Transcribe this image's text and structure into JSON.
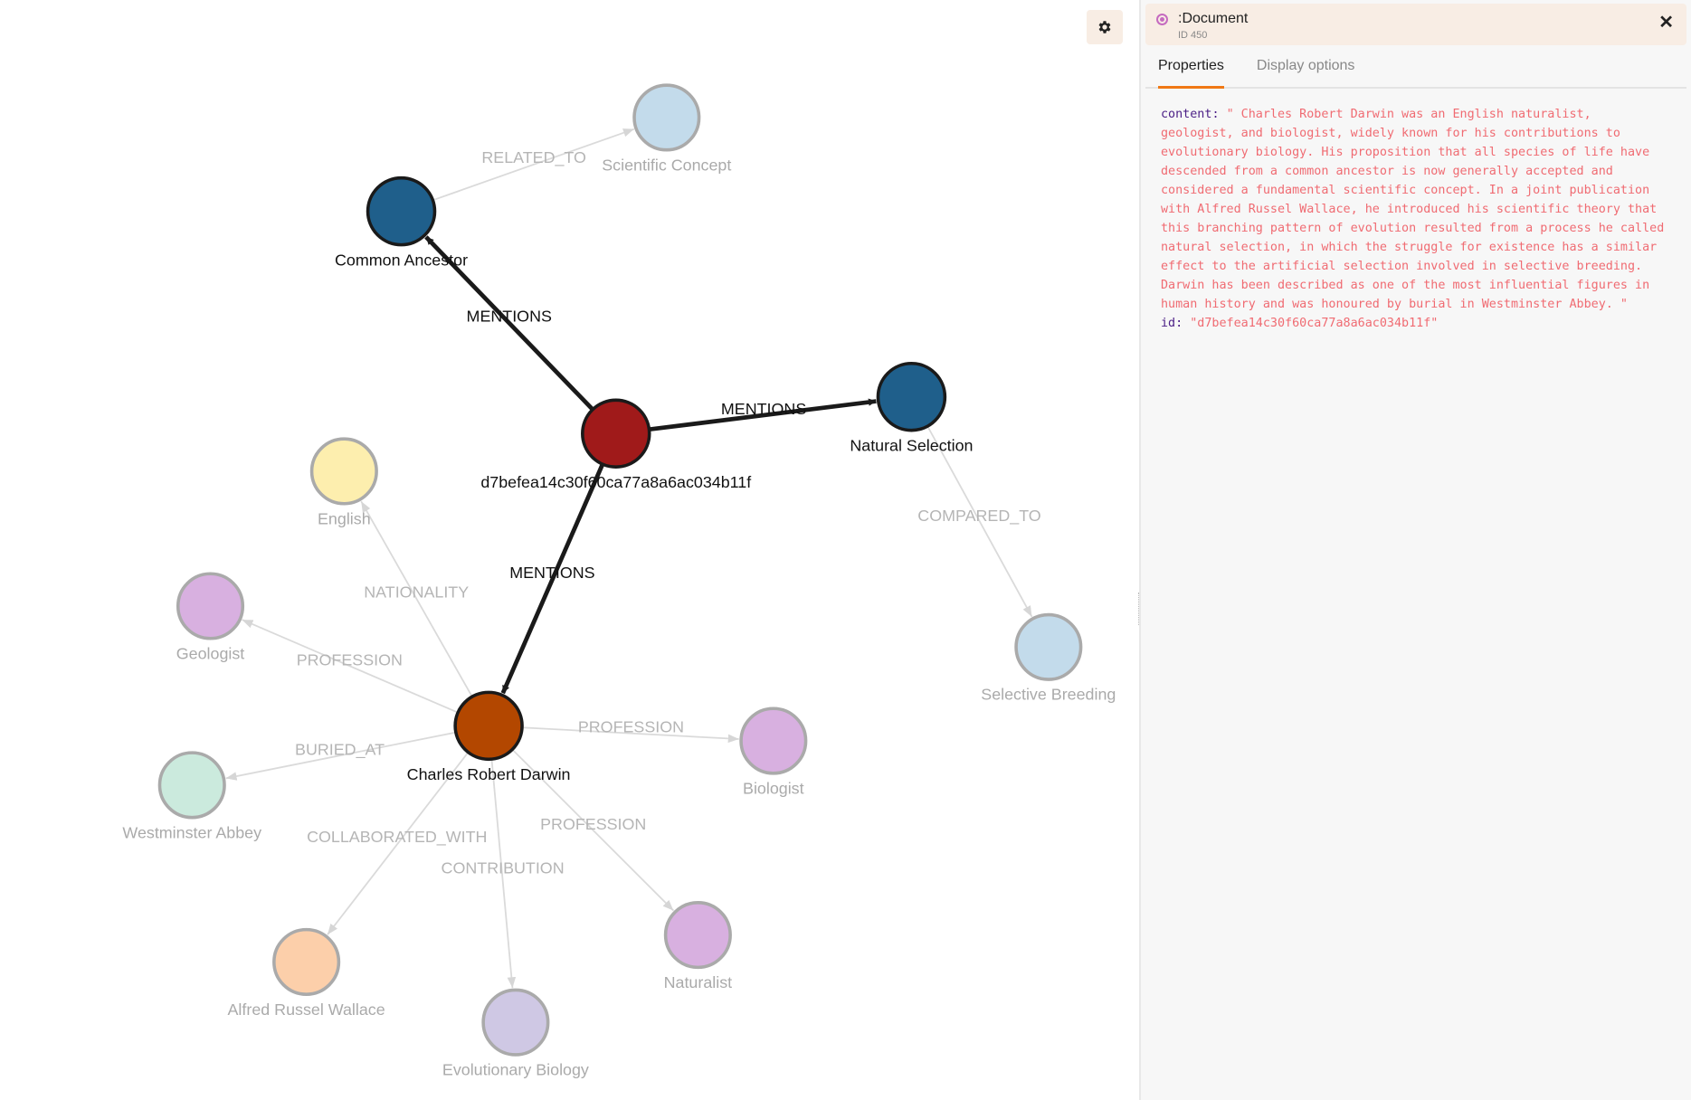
{
  "graph": {
    "nodes": [
      {
        "id": "doc",
        "label": "d7befea14c30f60ca77a8a6ac034b11f",
        "color": "#a01a1a",
        "faded": false
      },
      {
        "id": "ca",
        "label": "Common Ancestor",
        "color": "#1f5f8b",
        "faded": false
      },
      {
        "id": "ns",
        "label": "Natural Selection",
        "color": "#1f5f8b",
        "faded": false
      },
      {
        "id": "crd",
        "label": "Charles Robert Darwin",
        "color": "#b34700",
        "faded": false
      },
      {
        "id": "sc",
        "label": "Scientific Concept",
        "color": "#c3dbeb",
        "faded": true
      },
      {
        "id": "en",
        "label": "English",
        "color": "#fdeeae",
        "faded": true
      },
      {
        "id": "geo",
        "label": "Geologist",
        "color": "#d8b0e0",
        "faded": true
      },
      {
        "id": "wa",
        "label": "Westminster Abbey",
        "color": "#cbeadd",
        "faded": true
      },
      {
        "id": "arw",
        "label": "Alfred Russel Wallace",
        "color": "#fccfaa",
        "faded": true
      },
      {
        "id": "eb",
        "label": "Evolutionary Biology",
        "color": "#cfc8e4",
        "faded": true
      },
      {
        "id": "nat",
        "label": "Naturalist",
        "color": "#d8b0e0",
        "faded": true
      },
      {
        "id": "bio",
        "label": "Biologist",
        "color": "#d8b0e0",
        "faded": true
      },
      {
        "id": "sb",
        "label": "Selective Breeding",
        "color": "#c3dbeb",
        "faded": true
      }
    ],
    "edges": [
      {
        "from": "doc",
        "to": "ca",
        "label": "MENTIONS"
      },
      {
        "from": "doc",
        "to": "ns",
        "label": "MENTIONS"
      },
      {
        "from": "doc",
        "to": "crd",
        "label": "MENTIONS"
      },
      {
        "from": "ca",
        "to": "sc",
        "label": "RELATED_TO"
      },
      {
        "from": "ns",
        "to": "sb",
        "label": "COMPARED_TO"
      },
      {
        "from": "crd",
        "to": "en",
        "label": "NATIONALITY"
      },
      {
        "from": "crd",
        "to": "geo",
        "label": "PROFESSION"
      },
      {
        "from": "crd",
        "to": "wa",
        "label": "BURIED_AT"
      },
      {
        "from": "crd",
        "to": "arw",
        "label": "COLLABORATED_WITH"
      },
      {
        "from": "crd",
        "to": "eb",
        "label": "CONTRIBUTION"
      },
      {
        "from": "crd",
        "to": "nat",
        "label": "PROFESSION"
      },
      {
        "from": "crd",
        "to": "bio",
        "label": "PROFESSION"
      }
    ],
    "settings_icon": "gear-icon"
  },
  "panel": {
    "title": ":Document",
    "id_label": "ID 450",
    "tabs": [
      "Properties",
      "Display options"
    ],
    "active_tab": "Properties",
    "properties": [
      {
        "key": "content",
        "value": "\" Charles Robert Darwin was an English naturalist, geologist, and biologist, widely known for his contributions to evolutionary biology. His proposition that all species of life have descended from a common ancestor is now generally accepted and considered a fundamental scientific concept. In a joint publication with Alfred Russel Wallace, he introduced his scientific theory that this branching pattern of evolution resulted from a process he called natural selection, in which the struggle for existence has a similar effect to the artificial selection involved in selective breeding. Darwin has been described as one of the most influential figures in human history and was honoured by burial in Westminster Abbey. \""
      },
      {
        "key": "id",
        "value": "\"d7befea14c30f60ca77a8a6ac034b11f\""
      }
    ],
    "label_color": "#c56bc0",
    "accent": "#f07814"
  }
}
